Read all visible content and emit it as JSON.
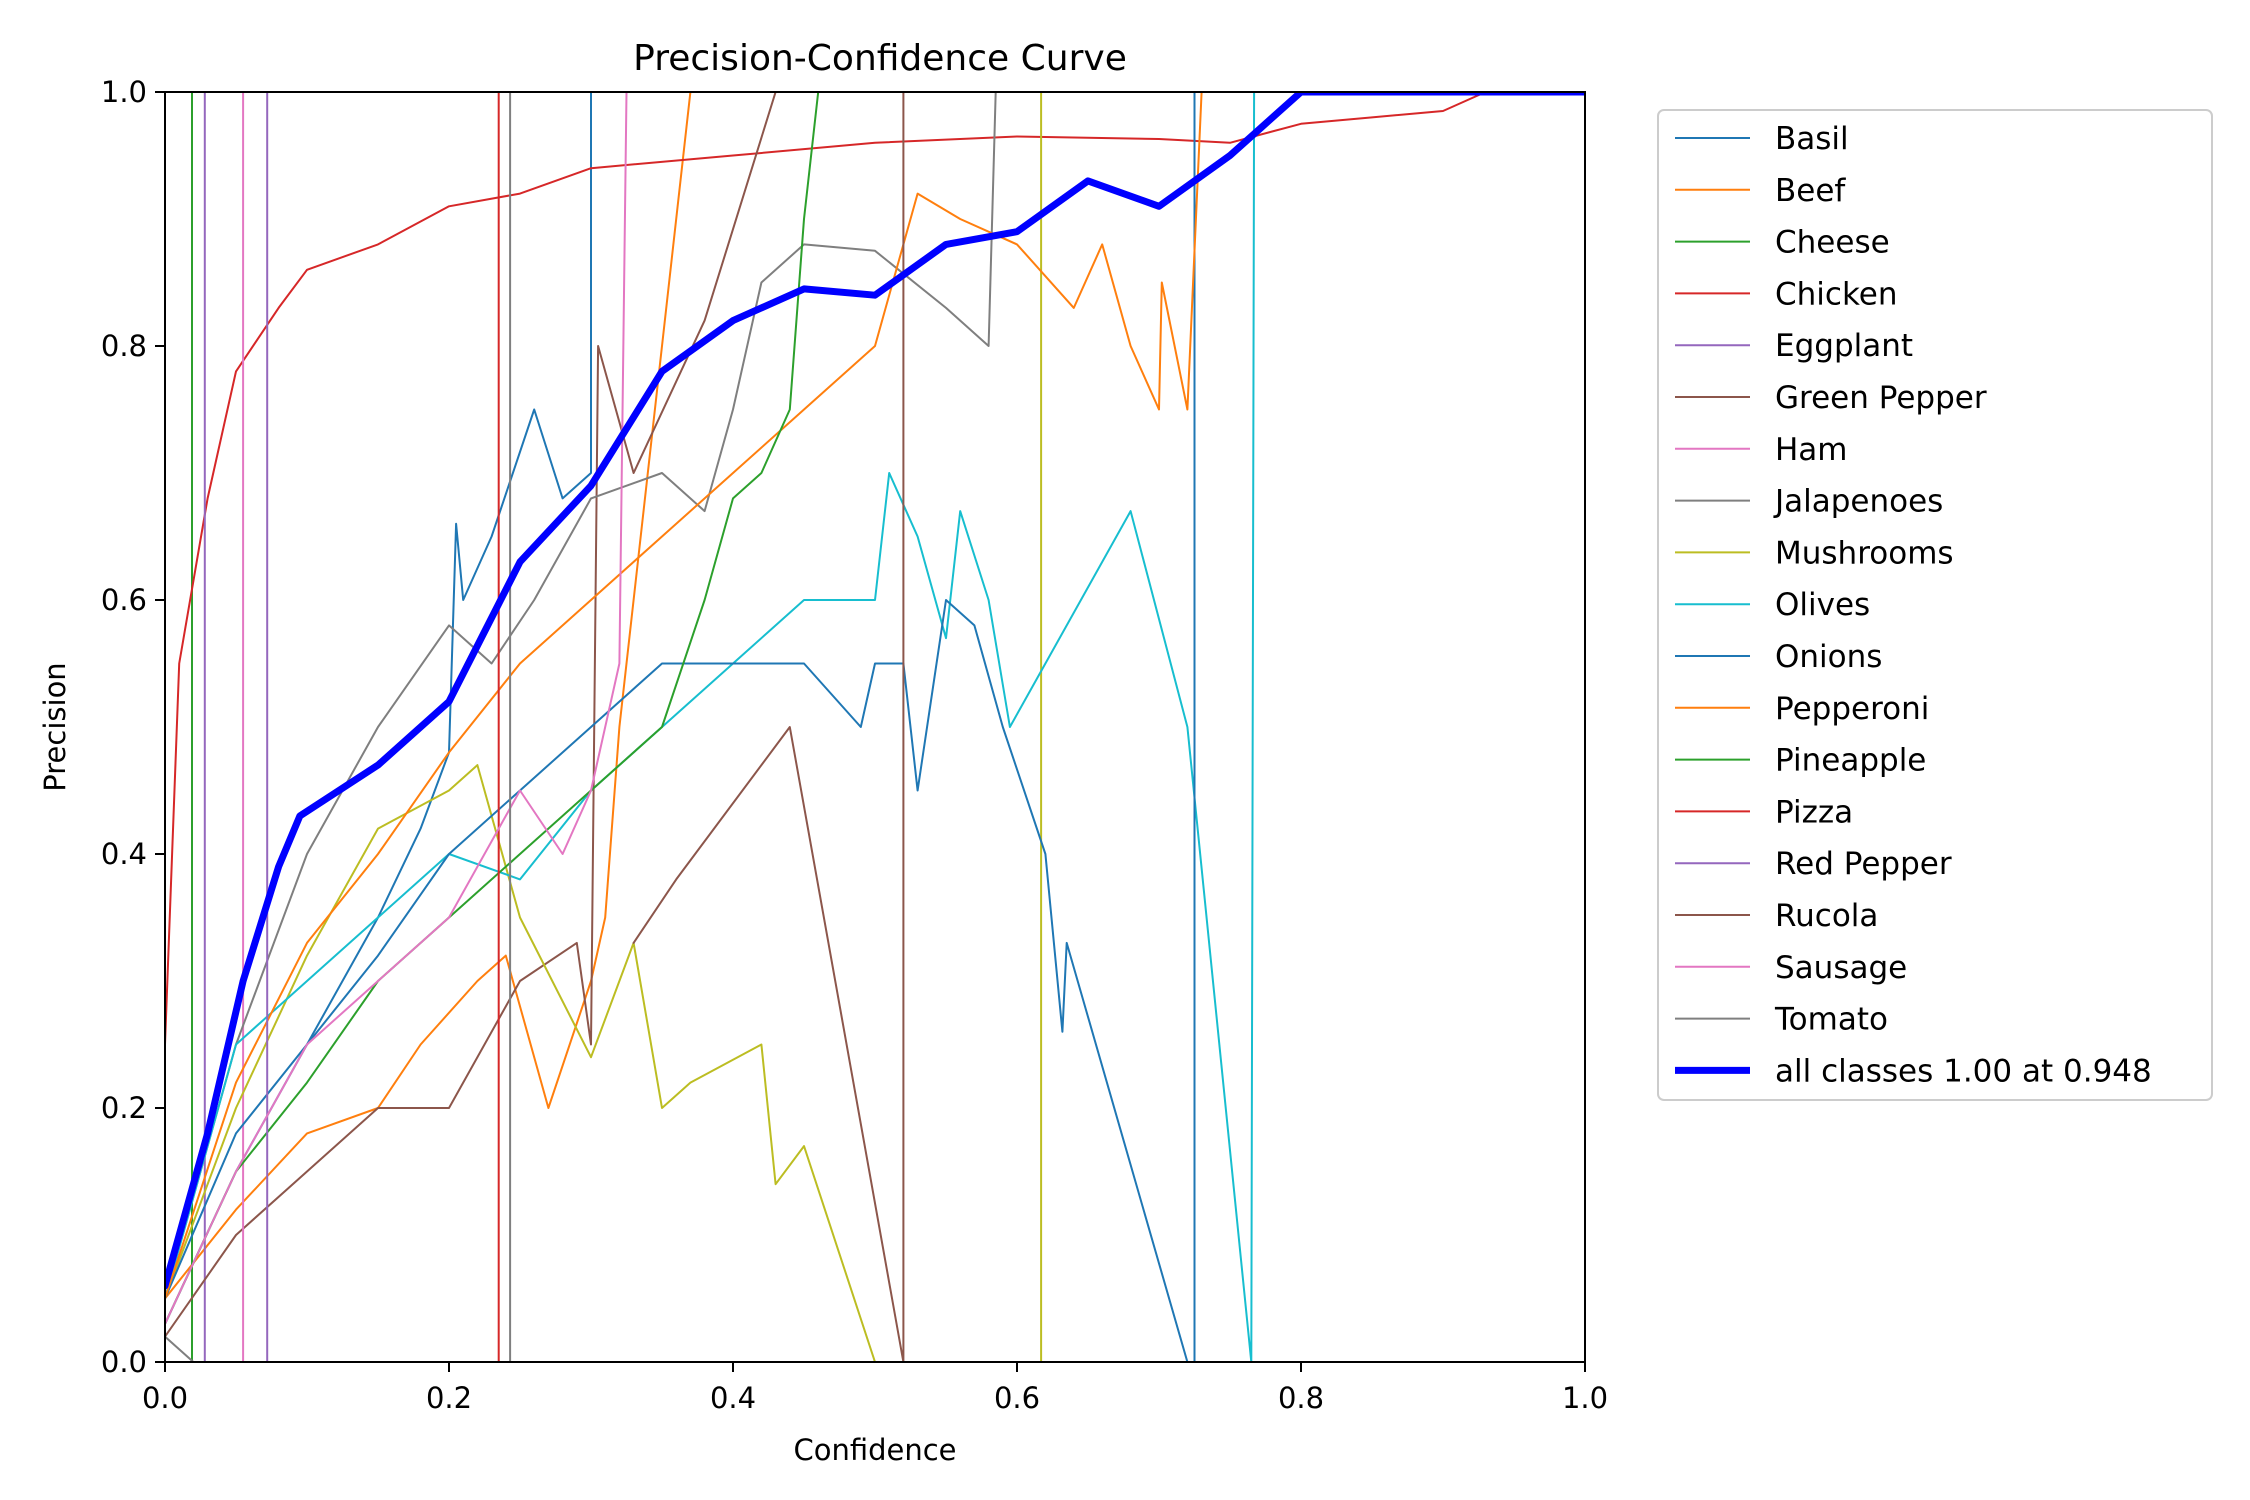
{
  "chart_data": {
    "type": "line",
    "title": "Precision-Confidence Curve",
    "xlabel": "Confidence",
    "ylabel": "Precision",
    "xlim": [
      0,
      1
    ],
    "ylim": [
      0,
      1
    ],
    "xticks": [
      "0.0",
      "0.2",
      "0.4",
      "0.6",
      "0.8",
      "1.0"
    ],
    "yticks": [
      "0.0",
      "0.2",
      "0.4",
      "0.6",
      "0.8",
      "1.0"
    ],
    "grid": false,
    "legend_position": "outside-right",
    "series": [
      {
        "name": "Basil",
        "color": "#1f77b4",
        "width": 2,
        "points": [
          [
            0,
            0.03
          ],
          [
            0.05,
            0.15
          ],
          [
            0.1,
            0.25
          ],
          [
            0.15,
            0.35
          ],
          [
            0.18,
            0.42
          ],
          [
            0.2,
            0.48
          ],
          [
            0.205,
            0.66
          ],
          [
            0.21,
            0.6
          ],
          [
            0.23,
            0.65
          ],
          [
            0.26,
            0.75
          ],
          [
            0.28,
            0.68
          ],
          [
            0.3,
            0.7
          ],
          [
            0.3,
            1.0
          ],
          [
            0.31,
            1.0
          ]
        ]
      },
      {
        "name": "Beef",
        "color": "#ff7f0e",
        "width": 2,
        "points": [
          [
            0,
            0.05
          ],
          [
            0.05,
            0.12
          ],
          [
            0.1,
            0.18
          ],
          [
            0.15,
            0.2
          ],
          [
            0.18,
            0.25
          ],
          [
            0.22,
            0.3
          ],
          [
            0.24,
            0.32
          ],
          [
            0.27,
            0.2
          ],
          [
            0.3,
            0.3
          ],
          [
            0.31,
            0.35
          ],
          [
            0.32,
            0.5
          ],
          [
            0.34,
            0.7
          ],
          [
            0.37,
            1.0
          ]
        ]
      },
      {
        "name": "Cheese",
        "color": "#2ca02c",
        "width": 2,
        "points": [
          [
            0.019,
            0.0
          ],
          [
            0.019,
            1.0
          ]
        ]
      },
      {
        "name": "Chicken",
        "color": "#d62728",
        "width": 2,
        "points": [
          [
            0,
            0.25
          ],
          [
            0.01,
            0.55
          ],
          [
            0.03,
            0.68
          ],
          [
            0.05,
            0.78
          ],
          [
            0.08,
            0.83
          ],
          [
            0.1,
            0.86
          ],
          [
            0.15,
            0.88
          ],
          [
            0.2,
            0.91
          ],
          [
            0.25,
            0.92
          ],
          [
            0.3,
            0.94
          ],
          [
            0.4,
            0.95
          ],
          [
            0.5,
            0.96
          ],
          [
            0.6,
            0.965
          ],
          [
            0.7,
            0.963
          ],
          [
            0.75,
            0.96
          ],
          [
            0.8,
            0.975
          ],
          [
            0.85,
            0.98
          ],
          [
            0.9,
            0.985
          ],
          [
            0.93,
            1.0
          ],
          [
            1.0,
            1.0
          ]
        ]
      },
      {
        "name": "Eggplant",
        "color": "#9467bd",
        "width": 2,
        "points": [
          [
            0.028,
            0.0
          ],
          [
            0.028,
            1.0
          ]
        ]
      },
      {
        "name": "Green Pepper",
        "color": "#8c564b",
        "width": 2,
        "points": [
          [
            0,
            0.02
          ],
          [
            0.05,
            0.1
          ],
          [
            0.1,
            0.15
          ],
          [
            0.15,
            0.2
          ],
          [
            0.2,
            0.2
          ],
          [
            0.25,
            0.3
          ],
          [
            0.29,
            0.33
          ],
          [
            0.3,
            0.25
          ],
          [
            0.305,
            0.8
          ],
          [
            0.33,
            0.7
          ],
          [
            0.38,
            0.82
          ],
          [
            0.43,
            1.0
          ]
        ]
      },
      {
        "name": "Ham",
        "color": "#e377c2",
        "width": 2,
        "points": [
          [
            0.055,
            0.0
          ],
          [
            0.055,
            1.0
          ]
        ]
      },
      {
        "name": "Jalapenoes",
        "color": "#7f7f7f",
        "width": 2,
        "points": [
          [
            0,
            0.05
          ],
          [
            0.05,
            0.25
          ],
          [
            0.1,
            0.4
          ],
          [
            0.15,
            0.5
          ],
          [
            0.2,
            0.58
          ],
          [
            0.23,
            0.55
          ],
          [
            0.26,
            0.6
          ],
          [
            0.3,
            0.68
          ],
          [
            0.35,
            0.7
          ],
          [
            0.38,
            0.67
          ],
          [
            0.4,
            0.75
          ],
          [
            0.42,
            0.85
          ],
          [
            0.45,
            0.88
          ],
          [
            0.5,
            0.875
          ],
          [
            0.55,
            0.83
          ],
          [
            0.58,
            0.8
          ],
          [
            0.585,
            1.0
          ]
        ]
      },
      {
        "name": "Mushrooms",
        "color": "#bcbd22",
        "width": 2,
        "points": [
          [
            0,
            0.05
          ],
          [
            0.05,
            0.2
          ],
          [
            0.1,
            0.32
          ],
          [
            0.15,
            0.42
          ],
          [
            0.2,
            0.45
          ],
          [
            0.22,
            0.47
          ],
          [
            0.25,
            0.35
          ],
          [
            0.3,
            0.24
          ],
          [
            0.33,
            0.33
          ],
          [
            0.35,
            0.2
          ],
          [
            0.37,
            0.22
          ],
          [
            0.42,
            0.25
          ],
          [
            0.43,
            0.14
          ],
          [
            0.45,
            0.17
          ],
          [
            0.5,
            0.0
          ],
          [
            0.6,
            0.0
          ],
          [
            0.617,
            0.0
          ],
          [
            0.617,
            1.0
          ]
        ]
      },
      {
        "name": "Olives",
        "color": "#17becf",
        "width": 2,
        "points": [
          [
            0,
            0.05
          ],
          [
            0.05,
            0.25
          ],
          [
            0.1,
            0.3
          ],
          [
            0.15,
            0.35
          ],
          [
            0.2,
            0.4
          ],
          [
            0.25,
            0.38
          ],
          [
            0.3,
            0.45
          ],
          [
            0.35,
            0.5
          ],
          [
            0.4,
            0.55
          ],
          [
            0.45,
            0.6
          ],
          [
            0.5,
            0.6
          ],
          [
            0.51,
            0.7
          ],
          [
            0.53,
            0.65
          ],
          [
            0.55,
            0.57
          ],
          [
            0.56,
            0.67
          ],
          [
            0.58,
            0.6
          ],
          [
            0.595,
            0.5
          ],
          [
            0.68,
            0.67
          ],
          [
            0.72,
            0.5
          ],
          [
            0.765,
            0.0
          ],
          [
            0.767,
            1.0
          ]
        ]
      },
      {
        "name": "Onions",
        "color": "#1f77b4",
        "width": 2,
        "points": [
          [
            0,
            0.05
          ],
          [
            0.05,
            0.18
          ],
          [
            0.1,
            0.25
          ],
          [
            0.15,
            0.32
          ],
          [
            0.2,
            0.4
          ],
          [
            0.25,
            0.45
          ],
          [
            0.3,
            0.5
          ],
          [
            0.35,
            0.55
          ],
          [
            0.4,
            0.55
          ],
          [
            0.45,
            0.55
          ],
          [
            0.49,
            0.5
          ],
          [
            0.5,
            0.55
          ],
          [
            0.52,
            0.55
          ],
          [
            0.53,
            0.45
          ],
          [
            0.55,
            0.6
          ],
          [
            0.57,
            0.58
          ],
          [
            0.59,
            0.5
          ],
          [
            0.62,
            0.4
          ],
          [
            0.632,
            0.26
          ],
          [
            0.635,
            0.33
          ],
          [
            0.72,
            0.0
          ],
          [
            0.725,
            0.0
          ],
          [
            0.725,
            1.0
          ]
        ]
      },
      {
        "name": "Pepperoni",
        "color": "#ff7f0e",
        "width": 2,
        "points": [
          [
            0,
            0.05
          ],
          [
            0.05,
            0.22
          ],
          [
            0.1,
            0.33
          ],
          [
            0.15,
            0.4
          ],
          [
            0.2,
            0.48
          ],
          [
            0.25,
            0.55
          ],
          [
            0.3,
            0.6
          ],
          [
            0.35,
            0.65
          ],
          [
            0.4,
            0.7
          ],
          [
            0.45,
            0.75
          ],
          [
            0.5,
            0.8
          ],
          [
            0.53,
            0.92
          ],
          [
            0.56,
            0.9
          ],
          [
            0.6,
            0.88
          ],
          [
            0.64,
            0.83
          ],
          [
            0.66,
            0.88
          ],
          [
            0.68,
            0.8
          ],
          [
            0.7,
            0.75
          ],
          [
            0.702,
            0.85
          ],
          [
            0.72,
            0.75
          ],
          [
            0.73,
            1.0
          ]
        ]
      },
      {
        "name": "Pineapple",
        "color": "#2ca02c",
        "width": 2,
        "points": [
          [
            0,
            0.03
          ],
          [
            0.05,
            0.15
          ],
          [
            0.1,
            0.22
          ],
          [
            0.15,
            0.3
          ],
          [
            0.2,
            0.35
          ],
          [
            0.25,
            0.4
          ],
          [
            0.3,
            0.45
          ],
          [
            0.35,
            0.5
          ],
          [
            0.38,
            0.6
          ],
          [
            0.4,
            0.68
          ],
          [
            0.42,
            0.7
          ],
          [
            0.44,
            0.75
          ],
          [
            0.45,
            0.9
          ],
          [
            0.46,
            1.0
          ]
        ]
      },
      {
        "name": "Pizza",
        "color": "#d62728",
        "width": 2,
        "points": [
          [
            0.235,
            0.0
          ],
          [
            0.235,
            1.0
          ]
        ]
      },
      {
        "name": "Red Pepper",
        "color": "#9467bd",
        "width": 2,
        "points": [
          [
            0.072,
            0.0
          ],
          [
            0.072,
            1.0
          ]
        ]
      },
      {
        "name": "Rucola",
        "color": "#8c564b",
        "width": 2,
        "points": [
          [
            0.33,
            0.33
          ],
          [
            0.36,
            0.38
          ],
          [
            0.44,
            0.5
          ],
          [
            0.52,
            0.0
          ],
          [
            0.52,
            1.0
          ]
        ]
      },
      {
        "name": "Sausage",
        "color": "#e377c2",
        "width": 2,
        "points": [
          [
            0,
            0.03
          ],
          [
            0.05,
            0.15
          ],
          [
            0.1,
            0.25
          ],
          [
            0.15,
            0.3
          ],
          [
            0.2,
            0.35
          ],
          [
            0.25,
            0.45
          ],
          [
            0.28,
            0.4
          ],
          [
            0.3,
            0.45
          ],
          [
            0.32,
            0.55
          ],
          [
            0.325,
            1.0
          ]
        ]
      },
      {
        "name": "Tomato",
        "color": "#7f7f7f",
        "width": 2,
        "points": [
          [
            0,
            0.02
          ],
          [
            0.02,
            0.0
          ],
          [
            0.243,
            0.0
          ],
          [
            0.243,
            1.0
          ]
        ]
      },
      {
        "name": "all classes 1.00 at 0.948",
        "color": "#0000ff",
        "width": 7,
        "points": [
          [
            0,
            0.06
          ],
          [
            0.03,
            0.18
          ],
          [
            0.055,
            0.3
          ],
          [
            0.08,
            0.39
          ],
          [
            0.095,
            0.43
          ],
          [
            0.15,
            0.47
          ],
          [
            0.2,
            0.52
          ],
          [
            0.25,
            0.63
          ],
          [
            0.3,
            0.69
          ],
          [
            0.35,
            0.78
          ],
          [
            0.4,
            0.82
          ],
          [
            0.45,
            0.845
          ],
          [
            0.5,
            0.84
          ],
          [
            0.55,
            0.88
          ],
          [
            0.6,
            0.89
          ],
          [
            0.65,
            0.93
          ],
          [
            0.7,
            0.91
          ],
          [
            0.75,
            0.95
          ],
          [
            0.8,
            1.0
          ],
          [
            1.0,
            1.0
          ]
        ]
      }
    ]
  }
}
